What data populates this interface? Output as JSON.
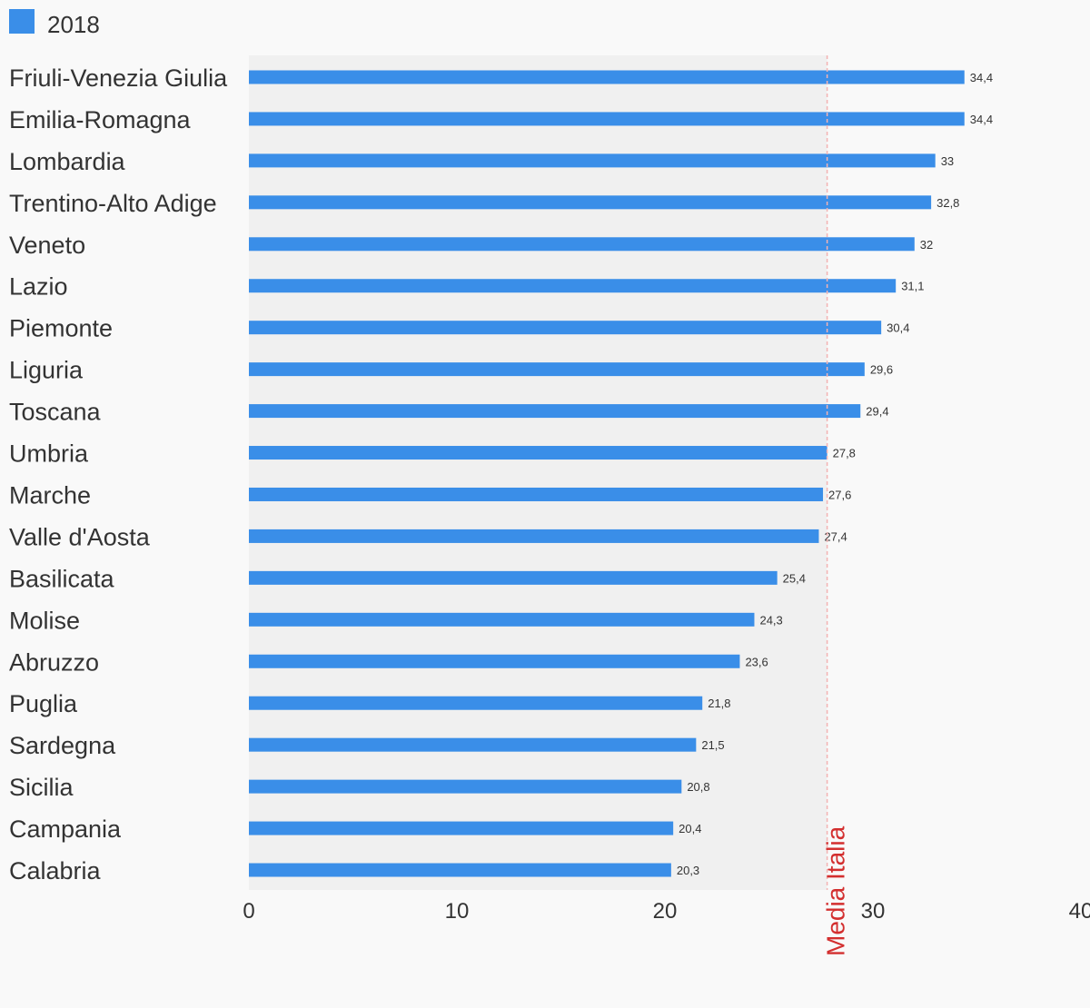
{
  "chart_data": {
    "type": "bar",
    "orientation": "horizontal",
    "categories": [
      "Friuli-Venezia Giulia",
      "Emilia-Romagna",
      "Lombardia",
      "Trentino-Alto Adige",
      "Veneto",
      "Lazio",
      "Piemonte",
      "Liguria",
      "Toscana",
      "Umbria",
      "Marche",
      "Valle d'Aosta",
      "Basilicata",
      "Molise",
      "Abruzzo",
      "Puglia",
      "Sardegna",
      "Sicilia",
      "Campania",
      "Calabria"
    ],
    "series": [
      {
        "name": "2018",
        "values": [
          34.4,
          34.4,
          33,
          32.8,
          32,
          31.1,
          30.4,
          29.6,
          29.4,
          27.8,
          27.6,
          27.4,
          25.4,
          24.3,
          23.6,
          21.8,
          21.5,
          20.8,
          20.4,
          20.3
        ],
        "value_labels": [
          "34,4",
          "34,4",
          "33",
          "32,8",
          "32",
          "31,1",
          "30,4",
          "29,6",
          "29,4",
          "27,8",
          "27,6",
          "27,4",
          "25,4",
          "24,3",
          "23,6",
          "21,8",
          "21,5",
          "20,8",
          "20,4",
          "20,3"
        ],
        "color": "#3a8ee8"
      }
    ],
    "xlim": [
      0,
      40
    ],
    "xticks": [
      0,
      10,
      20,
      30,
      40
    ],
    "reference_line": {
      "label": "Media Italia",
      "value": 27.8,
      "color": "#d32f2f"
    },
    "legend_position": "top-left",
    "grid": false,
    "title": "",
    "xlabel": "",
    "ylabel": ""
  }
}
